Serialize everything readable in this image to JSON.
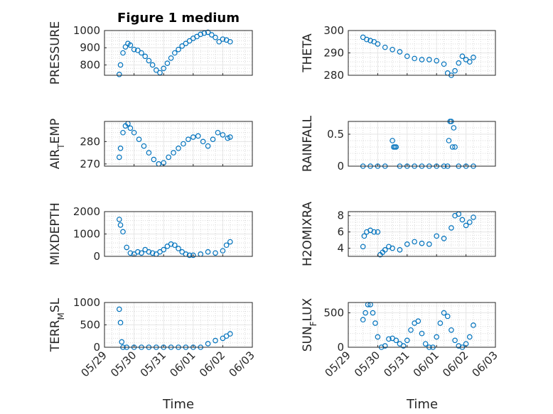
{
  "figure": {
    "title": "Figure 1 medium",
    "xlabel": "Time",
    "x_ticks": [
      "05/29",
      "05/30",
      "05/31",
      "06/01",
      "06/02",
      "06/03"
    ],
    "marker_color": "#0072BD"
  },
  "chart_data": [
    {
      "type": "scatter",
      "ylabel": "PRESSURE",
      "ylim": [
        740,
        1000
      ],
      "yticks": [
        800,
        900,
        1000
      ],
      "grid": true,
      "xlim": [
        "05/29",
        "06/03"
      ],
      "x": [
        "05/29 12:00",
        "05/29 13:00",
        "05/29 15:00",
        "05/29 17:00",
        "05/29 19:00",
        "05/29 21:00",
        "05/30 00:00",
        "05/30 03:00",
        "05/30 06:00",
        "05/30 09:00",
        "05/30 12:00",
        "05/30 15:00",
        "05/30 18:00",
        "05/30 21:00",
        "05/31 00:00",
        "05/31 03:00",
        "05/31 06:00",
        "05/31 09:00",
        "05/31 12:00",
        "05/31 15:00",
        "05/31 18:00",
        "05/31 21:00",
        "06/01 00:00",
        "06/01 03:00",
        "06/01 06:00",
        "06/01 09:00",
        "06/01 12:00",
        "06/01 15:00",
        "06/01 18:00",
        "06/01 21:00",
        "06/02 00:00",
        "06/02 03:00",
        "06/02 06:00"
      ],
      "y": [
        745,
        800,
        870,
        905,
        925,
        915,
        890,
        885,
        870,
        850,
        825,
        800,
        770,
        755,
        780,
        810,
        840,
        870,
        890,
        910,
        925,
        940,
        955,
        965,
        978,
        985,
        990,
        975,
        960,
        935,
        950,
        945,
        935
      ]
    },
    {
      "type": "scatter",
      "ylabel": "THETA",
      "ylim": [
        280,
        300
      ],
      "yticks": [
        280,
        290,
        300
      ],
      "grid": true,
      "xlim": [
        "05/29",
        "06/03"
      ],
      "x": [
        "05/29 12:00",
        "05/29 15:00",
        "05/29 18:00",
        "05/29 21:00",
        "05/30 00:00",
        "05/30 06:00",
        "05/30 12:00",
        "05/30 18:00",
        "05/31 00:00",
        "05/31 06:00",
        "05/31 12:00",
        "05/31 18:00",
        "06/01 00:00",
        "06/01 06:00",
        "06/01 09:00",
        "06/01 12:00",
        "06/01 15:00",
        "06/01 18:00",
        "06/01 21:00",
        "06/02 00:00",
        "06/02 03:00",
        "06/02 06:00"
      ],
      "y": [
        297,
        296,
        295.5,
        295,
        294,
        292.5,
        291.5,
        290.5,
        288.5,
        287.5,
        287,
        287,
        286.5,
        285,
        281,
        280,
        282,
        285.5,
        288.5,
        287,
        286,
        288
      ]
    },
    {
      "type": "scatter",
      "ylabel": "AIR_TEMP",
      "ylim": [
        269,
        289
      ],
      "yticks": [
        270,
        280
      ],
      "grid": true,
      "xlim": [
        "05/29",
        "06/03"
      ],
      "x": [
        "05/29 12:00",
        "05/29 13:00",
        "05/29 15:00",
        "05/29 17:00",
        "05/29 19:00",
        "05/29 21:00",
        "05/30 00:00",
        "05/30 04:00",
        "05/30 08:00",
        "05/30 12:00",
        "05/30 16:00",
        "05/30 20:00",
        "05/31 00:00",
        "05/31 04:00",
        "05/31 08:00",
        "05/31 12:00",
        "05/31 16:00",
        "05/31 20:00",
        "06/01 00:00",
        "06/01 04:00",
        "06/01 08:00",
        "06/01 12:00",
        "06/01 16:00",
        "06/01 20:00",
        "06/02 00:00",
        "06/02 04:00",
        "06/02 06:00"
      ],
      "y": [
        273,
        277,
        284,
        287,
        288,
        286,
        284,
        281,
        278,
        275,
        272,
        270,
        270.5,
        273,
        275,
        277,
        279,
        281,
        282,
        282.5,
        280,
        278,
        281,
        284,
        283,
        281.5,
        282
      ]
    },
    {
      "type": "scatter",
      "ylabel": "RAINFALL",
      "ylim": [
        0,
        0.7
      ],
      "yticks": [
        0,
        0.5
      ],
      "grid": true,
      "xlim": [
        "05/29",
        "06/03"
      ],
      "x": [
        "05/29 12:00",
        "05/29 18:00",
        "05/30 00:00",
        "05/30 06:00",
        "05/30 12:00",
        "05/30 13:00",
        "05/30 14:00",
        "05/30 15:00",
        "05/30 18:00",
        "05/31 00:00",
        "05/31 06:00",
        "05/31 12:00",
        "05/31 18:00",
        "06/01 00:00",
        "06/01 06:00",
        "06/01 09:00",
        "06/01 10:00",
        "06/01 11:00",
        "06/01 12:00",
        "06/01 13:00",
        "06/01 14:00",
        "06/01 15:00",
        "06/01 18:00",
        "06/02 00:00",
        "06/02 06:00"
      ],
      "y": [
        0,
        0,
        0,
        0,
        0.4,
        0.3,
        0.3,
        0.3,
        0,
        0,
        0,
        0,
        0,
        0,
        0,
        0,
        0.4,
        0.7,
        0.7,
        0.3,
        0.6,
        0.3,
        0,
        0,
        0
      ]
    },
    {
      "type": "scatter",
      "ylabel": "MIXDEPTH",
      "ylim": [
        0,
        2000
      ],
      "yticks": [
        0,
        1000,
        2000
      ],
      "grid": true,
      "xlim": [
        "05/29",
        "06/03"
      ],
      "x": [
        "05/29 12:00",
        "05/29 13:00",
        "05/29 15:00",
        "05/29 18:00",
        "05/29 21:00",
        "05/30 00:00",
        "05/30 03:00",
        "05/30 06:00",
        "05/30 09:00",
        "05/30 12:00",
        "05/30 15:00",
        "05/30 18:00",
        "05/30 21:00",
        "05/31 00:00",
        "05/31 03:00",
        "05/31 06:00",
        "05/31 09:00",
        "05/31 12:00",
        "05/31 15:00",
        "05/31 18:00",
        "05/31 21:00",
        "06/01 00:00",
        "06/01 06:00",
        "06/01 12:00",
        "06/01 18:00",
        "06/02 00:00",
        "06/02 03:00",
        "06/02 06:00"
      ],
      "y": [
        1650,
        1400,
        1100,
        400,
        150,
        100,
        200,
        150,
        300,
        200,
        150,
        100,
        200,
        300,
        450,
        550,
        500,
        350,
        200,
        100,
        50,
        50,
        100,
        200,
        150,
        250,
        500,
        650
      ]
    },
    {
      "type": "scatter",
      "ylabel": "H2OMIXRA",
      "ylim": [
        3,
        8.5
      ],
      "yticks": [
        4,
        6,
        8
      ],
      "grid": true,
      "xlim": [
        "05/29",
        "06/03"
      ],
      "x": [
        "05/29 12:00",
        "05/29 13:00",
        "05/29 15:00",
        "05/29 18:00",
        "05/29 21:00",
        "05/30 00:00",
        "05/30 02:00",
        "05/30 04:00",
        "05/30 06:00",
        "05/30 09:00",
        "05/30 12:00",
        "05/30 18:00",
        "05/31 00:00",
        "05/31 06:00",
        "05/31 12:00",
        "05/31 18:00",
        "06/01 00:00",
        "06/01 06:00",
        "06/01 12:00",
        "06/01 15:00",
        "06/01 18:00",
        "06/01 21:00",
        "06/02 00:00",
        "06/02 03:00",
        "06/02 06:00"
      ],
      "y": [
        4.2,
        5.5,
        6,
        6.2,
        6,
        6,
        3.2,
        3.5,
        3.8,
        4.2,
        4,
        3.8,
        4.5,
        4.8,
        4.6,
        4.5,
        5.5,
        5.2,
        6.5,
        8,
        8.2,
        7.5,
        6.8,
        7.2,
        7.8
      ]
    },
    {
      "type": "scatter",
      "ylabel": "TERR_MSL",
      "ylim": [
        0,
        1000
      ],
      "yticks": [
        0,
        500,
        1000
      ],
      "grid": true,
      "xlim": [
        "05/29",
        "06/03"
      ],
      "x": [
        "05/29 12:00",
        "05/29 13:00",
        "05/29 14:00",
        "05/29 15:00",
        "05/29 18:00",
        "05/30 00:00",
        "05/30 06:00",
        "05/30 12:00",
        "05/30 18:00",
        "05/31 00:00",
        "05/31 06:00",
        "05/31 12:00",
        "05/31 18:00",
        "06/01 00:00",
        "06/01 06:00",
        "06/01 12:00",
        "06/01 18:00",
        "06/02 00:00",
        "06/02 03:00",
        "06/02 06:00"
      ],
      "y": [
        850,
        550,
        120,
        0,
        0,
        0,
        0,
        0,
        0,
        0,
        0,
        0,
        0,
        0,
        0,
        80,
        150,
        200,
        250,
        300
      ]
    },
    {
      "type": "scatter",
      "ylabel": "SUN_FLUX",
      "ylim": [
        0,
        650
      ],
      "yticks": [
        0,
        500
      ],
      "grid": true,
      "xlim": [
        "05/29",
        "06/03"
      ],
      "x": [
        "05/29 12:00",
        "05/29 14:00",
        "05/29 16:00",
        "05/29 18:00",
        "05/29 20:00",
        "05/29 22:00",
        "05/30 00:00",
        "05/30 03:00",
        "05/30 06:00",
        "05/30 09:00",
        "05/30 12:00",
        "05/30 15:00",
        "05/30 18:00",
        "05/30 21:00",
        "05/31 00:00",
        "05/31 03:00",
        "05/31 06:00",
        "05/31 09:00",
        "05/31 12:00",
        "05/31 15:00",
        "05/31 18:00",
        "05/31 21:00",
        "06/01 00:00",
        "06/01 03:00",
        "06/01 06:00",
        "06/01 09:00",
        "06/01 12:00",
        "06/01 15:00",
        "06/01 18:00",
        "06/01 21:00",
        "06/02 00:00",
        "06/02 03:00",
        "06/02 06:00"
      ],
      "y": [
        400,
        500,
        620,
        620,
        500,
        350,
        150,
        0,
        20,
        120,
        130,
        100,
        50,
        20,
        100,
        250,
        350,
        380,
        200,
        50,
        0,
        0,
        150,
        350,
        500,
        450,
        250,
        100,
        20,
        0,
        50,
        150,
        320
      ]
    }
  ]
}
